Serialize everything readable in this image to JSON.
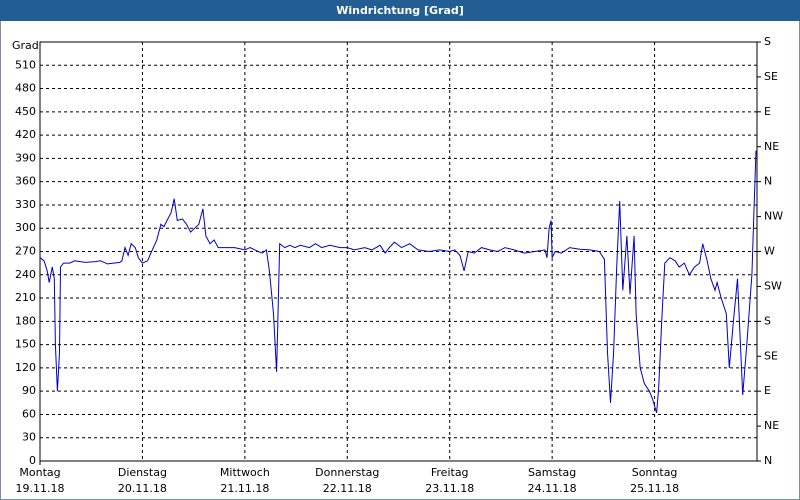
{
  "chart_data": {
    "type": "line",
    "title": "Windrichtung [Grad]",
    "y_label": "Grad",
    "color": "#0000c8",
    "grid": true,
    "xlim": [
      0,
      7
    ],
    "xticks": [
      {
        "value": 0,
        "label": "Montag",
        "date": "19.11.18"
      },
      {
        "value": 1,
        "label": "Dienstag",
        "date": "20.11.18"
      },
      {
        "value": 2,
        "label": "Mittwoch",
        "date": "21.11.18"
      },
      {
        "value": 3,
        "label": "Donnerstag",
        "date": "22.11.18"
      },
      {
        "value": 4,
        "label": "Freitag",
        "date": "23.11.18"
      },
      {
        "value": 5,
        "label": "Samstag",
        "date": "24.11.18"
      },
      {
        "value": 6,
        "label": "Sonntag",
        "date": "25.11.18"
      }
    ],
    "ylim": [
      0,
      540
    ],
    "yticks": [
      0,
      30,
      60,
      90,
      120,
      150,
      180,
      210,
      240,
      270,
      300,
      330,
      360,
      390,
      420,
      450,
      480,
      510
    ],
    "y2lim": [
      0,
      540
    ],
    "y2ticks": [
      {
        "value": 0,
        "label": "N"
      },
      {
        "value": 45,
        "label": "NE"
      },
      {
        "value": 90,
        "label": "E"
      },
      {
        "value": 135,
        "label": "SE"
      },
      {
        "value": 180,
        "label": "S"
      },
      {
        "value": 225,
        "label": "SW"
      },
      {
        "value": 270,
        "label": "W"
      },
      {
        "value": 315,
        "label": "NW"
      },
      {
        "value": 360,
        "label": "N"
      },
      {
        "value": 405,
        "label": "NE"
      },
      {
        "value": 450,
        "label": "E"
      },
      {
        "value": 495,
        "label": "SE"
      },
      {
        "value": 540,
        "label": "S"
      }
    ],
    "x": [
      0,
      0.04,
      0.07,
      0.09,
      0.12,
      0.14,
      0.15,
      0.17,
      0.19,
      0.2,
      0.23,
      0.29,
      0.34,
      0.44,
      0.54,
      0.59,
      0.66,
      0.78,
      0.8,
      0.83,
      0.86,
      0.89,
      0.93,
      0.96,
      1.0,
      1.05,
      1.09,
      1.14,
      1.18,
      1.21,
      1.24,
      1.28,
      1.31,
      1.34,
      1.39,
      1.43,
      1.47,
      1.51,
      1.55,
      1.59,
      1.62,
      1.66,
      1.7,
      1.74,
      1.8,
      1.9,
      2.0,
      2.05,
      2.13,
      2.17,
      2.21,
      2.24,
      2.28,
      2.31,
      2.34,
      2.39,
      2.44,
      2.49,
      2.54,
      2.63,
      2.69,
      2.75,
      2.83,
      2.93,
      3.0,
      3.07,
      3.17,
      3.24,
      3.32,
      3.37,
      3.41,
      3.46,
      3.53,
      3.61,
      3.69,
      3.8,
      3.9,
      4.0,
      4.05,
      4.1,
      4.14,
      4.18,
      4.24,
      4.31,
      4.39,
      4.47,
      4.54,
      4.63,
      4.73,
      4.83,
      4.93,
      4.95,
      4.97,
      4.99,
      5.0,
      5.03,
      5.09,
      5.17,
      5.27,
      5.37,
      5.46,
      5.51,
      5.54,
      5.57,
      5.6,
      5.63,
      5.66,
      5.69,
      5.73,
      5.76,
      5.8,
      5.82,
      5.86,
      5.9,
      5.95,
      5.98,
      6.02,
      6.04,
      6.07,
      6.1,
      6.15,
      6.2,
      6.24,
      6.29,
      6.34,
      6.39,
      6.44,
      6.47,
      6.51,
      6.55,
      6.59,
      6.61,
      6.65,
      6.7,
      6.73,
      6.77,
      6.81,
      6.86,
      6.9,
      6.95,
      6.97,
      6.99
    ],
    "values": [
      262,
      258,
      245,
      230,
      250,
      235,
      150,
      90,
      140,
      250,
      255,
      255,
      258,
      256,
      257,
      258,
      254,
      256,
      258,
      275,
      265,
      280,
      275,
      262,
      255,
      258,
      270,
      285,
      305,
      302,
      310,
      320,
      338,
      310,
      312,
      305,
      295,
      300,
      305,
      325,
      290,
      280,
      285,
      275,
      275,
      275,
      272,
      275,
      270,
      268,
      272,
      245,
      190,
      115,
      280,
      275,
      278,
      275,
      278,
      275,
      280,
      275,
      278,
      275,
      275,
      272,
      275,
      272,
      278,
      268,
      275,
      282,
      275,
      280,
      272,
      270,
      272,
      270,
      272,
      265,
      245,
      270,
      268,
      275,
      272,
      270,
      275,
      272,
      268,
      270,
      272,
      262,
      300,
      310,
      262,
      270,
      268,
      275,
      273,
      272,
      270,
      260,
      140,
      75,
      140,
      250,
      335,
      220,
      290,
      215,
      290,
      190,
      120,
      100,
      90,
      80,
      62,
      95,
      180,
      255,
      262,
      258,
      250,
      255,
      240,
      250,
      255,
      280,
      260,
      235,
      220,
      230,
      210,
      190,
      120,
      180,
      235,
      85,
      150,
      240,
      320,
      400
    ]
  }
}
